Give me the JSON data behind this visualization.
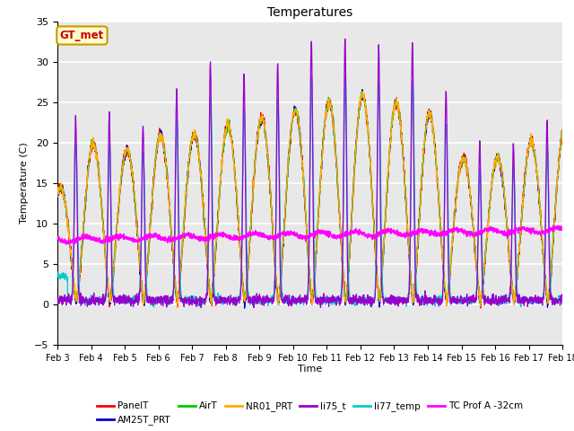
{
  "title": "Temperatures",
  "xlabel": "Time",
  "ylabel": "Temperature (C)",
  "ylim": [
    -5,
    35
  ],
  "xlim_days": [
    3,
    18
  ],
  "x_ticks": [
    3,
    4,
    5,
    6,
    7,
    8,
    9,
    10,
    11,
    12,
    13,
    14,
    15,
    16,
    17,
    18
  ],
  "x_tick_labels": [
    "Feb 3",
    "Feb 4",
    "Feb 5",
    "Feb 6",
    "Feb 7",
    "Feb 8",
    "Feb 9",
    "Feb 10",
    "Feb 11",
    "Feb 12",
    "Feb 13",
    "Feb 14",
    "Feb 15",
    "Feb 16",
    "Feb 17",
    "Feb 18"
  ],
  "series_colors": {
    "PanelT": "#ff0000",
    "AM25T_PRT": "#0000cc",
    "AirT": "#00cc00",
    "NR01_PRT": "#ffaa00",
    "li75_t": "#9900cc",
    "li77_temp": "#00cccc",
    "TC Prof A -32cm": "#ff00ff"
  },
  "annotation_text": "GT_met",
  "annotation_color": "#cc0000",
  "annotation_bg": "#ffffcc",
  "annotation_border": "#cc9900",
  "bg_color": "#e8e8e8",
  "grid_color": "#ffffff",
  "n_points": 2160,
  "start_day": 3,
  "end_day": 18
}
